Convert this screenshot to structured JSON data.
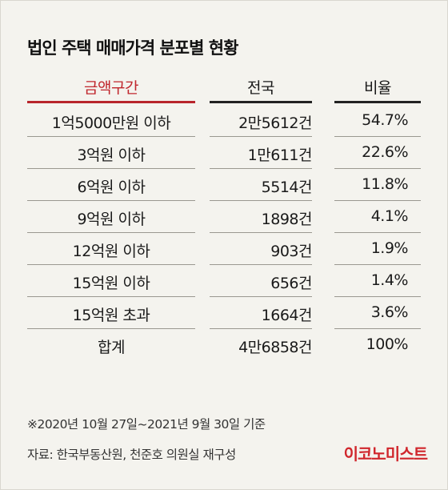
{
  "title": "법인 주택 매매가격 분포별 현황",
  "table": {
    "headers": [
      "금액구간",
      "전국",
      "비율"
    ],
    "rows": [
      [
        "1억5000만원 이하",
        "2만5612건",
        "54.7%"
      ],
      [
        "3억원 이하",
        "1만611건",
        "22.6%"
      ],
      [
        "6억원 이하",
        "5514건",
        "11.8%"
      ],
      [
        "9억원 이하",
        "1898건",
        "4.1%"
      ],
      [
        "12억원 이하",
        "903건",
        "1.9%"
      ],
      [
        "15억원 이하",
        "656건",
        "1.4%"
      ],
      [
        "15억원 초과",
        "1664건",
        "3.6%"
      ],
      [
        "합계",
        "4만6858건",
        "100%"
      ]
    ]
  },
  "note": "※2020년 10월 27일~2021년 9월 30일 기준",
  "source": "자료: 한국부동산원, 천준호 의원실 재구성",
  "logo": "이코노미스트",
  "colors": {
    "accent": "#c0272d",
    "background": "#f4f3ee"
  }
}
